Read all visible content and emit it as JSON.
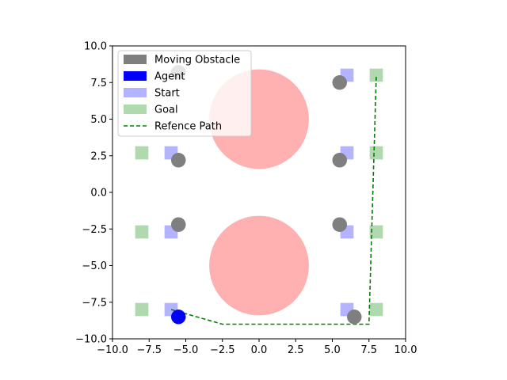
{
  "chart_data": {
    "type": "scatter",
    "xlim": [
      -10,
      10
    ],
    "ylim": [
      -10,
      10
    ],
    "x_ticks": [
      "−10.0",
      "−7.5",
      "−5.0",
      "−2.5",
      "0.0",
      "2.5",
      "5.0",
      "7.5",
      "10.0"
    ],
    "y_ticks": [
      "−10.0",
      "−7.5",
      "−5.0",
      "−2.5",
      "0.0",
      "2.5",
      "5.0",
      "7.5",
      "10.0"
    ],
    "x_tick_values": [
      -10,
      -7.5,
      -5,
      -2.5,
      0,
      2.5,
      5,
      7.5,
      10
    ],
    "y_tick_values": [
      -10,
      -7.5,
      -5,
      -2.5,
      0,
      2.5,
      5,
      7.5,
      10
    ],
    "grid": false,
    "legend_position": "top-left",
    "legend": [
      {
        "label": "Moving Obstacle",
        "color": "#7f7f7f",
        "kind": "patch"
      },
      {
        "label": "Agent",
        "color": "#0000ff",
        "kind": "patch"
      },
      {
        "label": "Start",
        "color": "#b3b3ff",
        "kind": "patch"
      },
      {
        "label": "Goal",
        "color": "#b0d9b0",
        "kind": "patch"
      },
      {
        "label": "Refence Path",
        "color": "#008000",
        "kind": "dashed-line"
      }
    ],
    "static_obstacles": [
      {
        "cx": 0,
        "cy": 5,
        "r": 3.4,
        "color": "#ffb0b0"
      },
      {
        "cx": 0,
        "cy": -5,
        "r": 3.4,
        "color": "#ffb0b0"
      }
    ],
    "start_markers": [
      [
        6,
        8
      ],
      [
        6,
        2.7
      ],
      [
        -6,
        2.7
      ],
      [
        -6,
        -2.7
      ],
      [
        6,
        -2.7
      ],
      [
        -6,
        -8
      ],
      [
        6,
        -8
      ]
    ],
    "goal_markers": [
      [
        8,
        8
      ],
      [
        8,
        2.7
      ],
      [
        -8,
        2.7
      ],
      [
        -8,
        -2.7
      ],
      [
        8,
        -2.7
      ],
      [
        -8,
        -8
      ],
      [
        8,
        -8
      ]
    ],
    "moving_obstacles": [
      [
        -5.5,
        8.2
      ],
      [
        5.5,
        7.5
      ],
      [
        -5.5,
        2.2
      ],
      [
        5.5,
        2.2
      ],
      [
        -5.5,
        -2.2
      ],
      [
        5.5,
        -2.2
      ],
      [
        6.5,
        -8.5
      ]
    ],
    "agent": [
      -5.5,
      -8.5
    ],
    "reference_path": {
      "x": [
        -6,
        -2.5,
        7.5,
        8
      ],
      "y": [
        -8,
        -9,
        -9,
        8
      ]
    }
  }
}
